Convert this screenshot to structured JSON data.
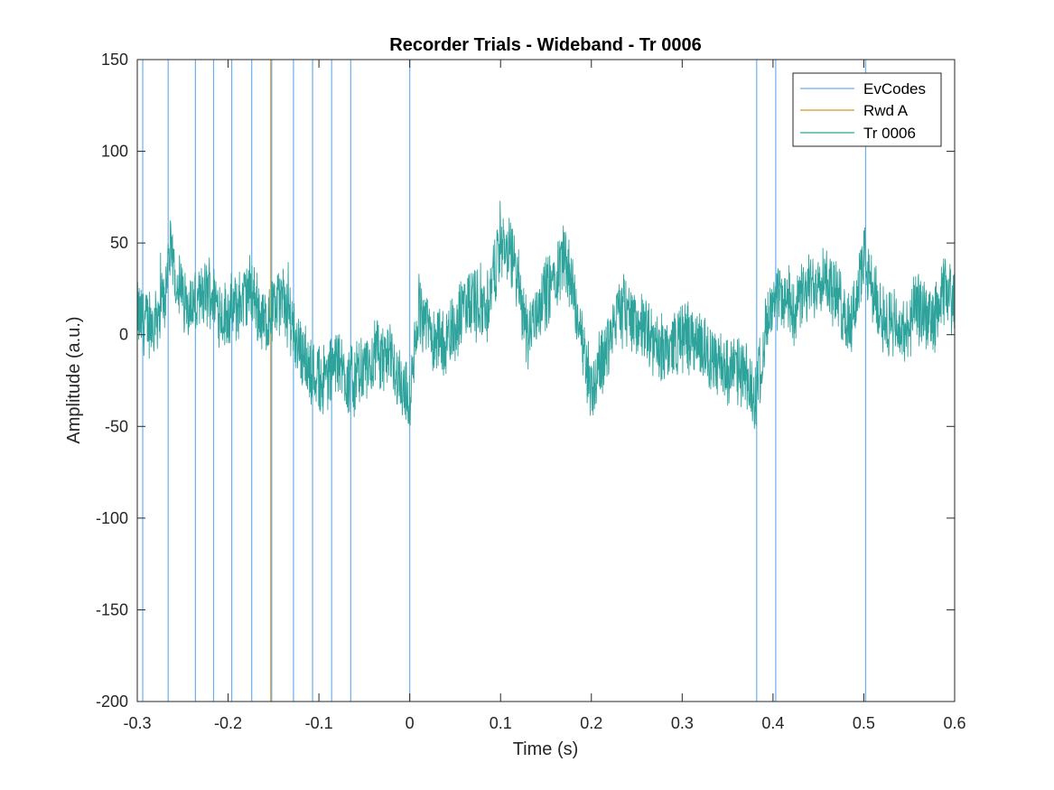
{
  "chart_data": {
    "type": "line",
    "title": "Recorder Trials - Wideband - Tr 0006",
    "xlabel": "Time (s)",
    "ylabel": "Amplitude (a.u.)",
    "xlim": [
      -0.3,
      0.6
    ],
    "ylim": [
      -200,
      150
    ],
    "xticks": [
      -0.3,
      -0.2,
      -0.1,
      0,
      0.1,
      0.2,
      0.3,
      0.4,
      0.5,
      0.6
    ],
    "xtick_labels": [
      "-0.3",
      "-0.2",
      "-0.1",
      "0",
      "0.1",
      "0.2",
      "0.3",
      "0.4",
      "0.5",
      "0.6"
    ],
    "yticks": [
      -200,
      -150,
      -100,
      -50,
      0,
      50,
      100,
      150
    ],
    "ytick_labels": [
      "-200",
      "-150",
      "-100",
      "-50",
      "0",
      "50",
      "100",
      "150"
    ],
    "grid": false,
    "legend_position": "top-right",
    "series": [
      {
        "name": "EvCodes",
        "kind": "vertical-lines",
        "color": "#6aaef0",
        "x": [
          -0.294,
          -0.266,
          -0.236,
          -0.216,
          -0.196,
          -0.174,
          -0.152,
          -0.128,
          -0.107,
          -0.086,
          -0.065,
          0.0,
          0.382,
          0.403,
          0.502
        ]
      },
      {
        "name": "Rwd A",
        "kind": "vertical-lines",
        "color": "#d29a2a",
        "x": [
          -0.153
        ]
      },
      {
        "name": "Tr 0006",
        "kind": "signal",
        "color": "#2ea39c",
        "x": [
          -0.3,
          -0.285,
          -0.27,
          -0.265,
          -0.25,
          -0.235,
          -0.22,
          -0.205,
          -0.19,
          -0.175,
          -0.16,
          -0.15,
          -0.14,
          -0.125,
          -0.11,
          -0.095,
          -0.08,
          -0.065,
          -0.05,
          -0.035,
          -0.02,
          -0.01,
          0.0,
          0.01,
          0.025,
          0.04,
          0.055,
          0.07,
          0.085,
          0.1,
          0.115,
          0.13,
          0.145,
          0.16,
          0.17,
          0.185,
          0.2,
          0.215,
          0.23,
          0.245,
          0.26,
          0.275,
          0.29,
          0.305,
          0.32,
          0.335,
          0.35,
          0.365,
          0.38,
          0.395,
          0.41,
          0.425,
          0.44,
          0.455,
          0.47,
          0.485,
          0.5,
          0.515,
          0.53,
          0.545,
          0.56,
          0.575,
          0.59,
          0.6
        ],
        "values": [
          10,
          5,
          20,
          45,
          20,
          15,
          25,
          10,
          15,
          25,
          5,
          15,
          20,
          0,
          -20,
          -25,
          -15,
          -25,
          -20,
          -10,
          -15,
          -25,
          -40,
          15,
          0,
          -5,
          10,
          20,
          15,
          50,
          40,
          0,
          20,
          30,
          45,
          10,
          -30,
          -10,
          15,
          10,
          0,
          -10,
          -5,
          0,
          -5,
          -15,
          -20,
          -20,
          -35,
          10,
          20,
          15,
          25,
          35,
          20,
          5,
          40,
          15,
          5,
          0,
          15,
          5,
          25,
          15
        ]
      }
    ]
  }
}
